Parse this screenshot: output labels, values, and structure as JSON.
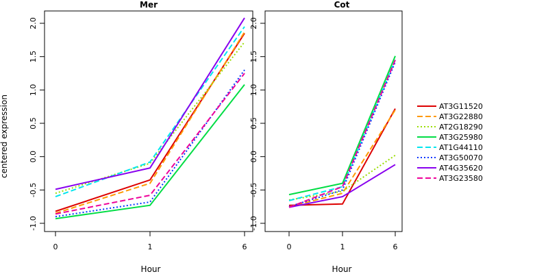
{
  "chart_data": {
    "type": "line",
    "ylabel": "centered expression",
    "legend_position": "right",
    "x": [
      "0",
      "1",
      "6"
    ],
    "ylim": [
      -1.0,
      2.0
    ],
    "yticks": [
      "-1.0",
      "-0.5",
      "0.0",
      "0.5",
      "1.0",
      "1.5",
      "2.0"
    ],
    "legend": [
      {
        "name": "AT3G11520",
        "color": "#dd0000",
        "dash": "solid"
      },
      {
        "name": "AT3G22880",
        "color": "#ff9900",
        "dash": "dashed"
      },
      {
        "name": "AT2G18290",
        "color": "#99dd00",
        "dash": "dotted"
      },
      {
        "name": "AT3G25980",
        "color": "#00dd44",
        "dash": "solid"
      },
      {
        "name": "AT1G44110",
        "color": "#00e5ee",
        "dash": "dashed"
      },
      {
        "name": "AT3G50070",
        "color": "#0033ff",
        "dash": "dotted"
      },
      {
        "name": "AT4G35620",
        "color": "#8800ee",
        "dash": "solid"
      },
      {
        "name": "AT3G23580",
        "color": "#ee0099",
        "dash": "dashed"
      }
    ],
    "panels": [
      {
        "title": "Mer",
        "xlabel": "Hour",
        "series": [
          {
            "name": "AT3G11520",
            "values": [
              -0.82,
              -0.35,
              1.85
            ]
          },
          {
            "name": "AT3G22880",
            "values": [
              -0.85,
              -0.4,
              1.87
            ]
          },
          {
            "name": "AT2G18290",
            "values": [
              -0.55,
              -0.1,
              1.72
            ]
          },
          {
            "name": "AT3G25980",
            "values": [
              -0.93,
              -0.73,
              1.08
            ]
          },
          {
            "name": "AT1G44110",
            "values": [
              -0.6,
              -0.08,
              1.95
            ]
          },
          {
            "name": "AT3G50070",
            "values": [
              -0.9,
              -0.68,
              1.3
            ]
          },
          {
            "name": "AT4G35620",
            "values": [
              -0.49,
              -0.17,
              2.08
            ]
          },
          {
            "name": "AT3G23580",
            "values": [
              -0.86,
              -0.58,
              1.25
            ]
          }
        ]
      },
      {
        "title": "Cot",
        "xlabel": "Hour",
        "series": [
          {
            "name": "AT3G11520",
            "values": [
              -0.73,
              -0.71,
              0.72
            ]
          },
          {
            "name": "AT3G22880",
            "values": [
              -0.75,
              -0.55,
              0.7
            ]
          },
          {
            "name": "AT2G18290",
            "values": [
              -0.65,
              -0.52,
              0.02
            ]
          },
          {
            "name": "AT3G25980",
            "values": [
              -0.57,
              -0.4,
              1.51
            ]
          },
          {
            "name": "AT1G44110",
            "values": [
              -0.66,
              -0.45,
              1.45
            ]
          },
          {
            "name": "AT3G50070",
            "values": [
              -0.75,
              -0.5,
              1.42
            ]
          },
          {
            "name": "AT4G35620",
            "values": [
              -0.76,
              -0.6,
              -0.12
            ]
          },
          {
            "name": "AT3G23580",
            "values": [
              -0.76,
              -0.45,
              1.45
            ]
          }
        ]
      }
    ]
  }
}
